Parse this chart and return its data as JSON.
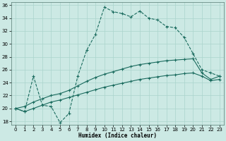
{
  "title": "",
  "xlabel": "Humidex (Indice chaleur)",
  "xlim": [
    -0.5,
    23.5
  ],
  "ylim": [
    17.5,
    36.5
  ],
  "yticks": [
    18,
    20,
    22,
    24,
    26,
    28,
    30,
    32,
    34,
    36
  ],
  "xticks": [
    0,
    1,
    2,
    3,
    4,
    5,
    6,
    7,
    8,
    9,
    10,
    11,
    12,
    13,
    14,
    15,
    16,
    17,
    18,
    19,
    20,
    21,
    22,
    23
  ],
  "background_color": "#cce9e4",
  "line_color": "#1a6b5e",
  "grid_color": "#aad4cc",
  "line1_y": [
    20.0,
    19.5,
    25.0,
    20.5,
    20.3,
    17.8,
    19.2,
    25.0,
    29.0,
    31.5,
    35.7,
    35.0,
    34.7,
    34.2,
    35.1,
    34.0,
    33.7,
    32.7,
    32.5,
    31.0,
    28.5,
    26.0,
    25.5,
    25.0
  ],
  "line2_y": [
    20.0,
    20.3,
    21.0,
    21.5,
    22.0,
    22.3,
    22.8,
    23.5,
    24.2,
    24.8,
    25.3,
    25.7,
    26.1,
    26.5,
    26.8,
    27.0,
    27.2,
    27.4,
    27.5,
    27.6,
    27.7,
    25.5,
    24.5,
    25.0
  ],
  "line3_y": [
    20.0,
    19.5,
    20.0,
    20.5,
    21.0,
    21.3,
    21.7,
    22.1,
    22.5,
    22.9,
    23.3,
    23.6,
    23.9,
    24.2,
    24.5,
    24.7,
    24.9,
    25.1,
    25.2,
    25.4,
    25.5,
    25.0,
    24.3,
    24.5
  ]
}
